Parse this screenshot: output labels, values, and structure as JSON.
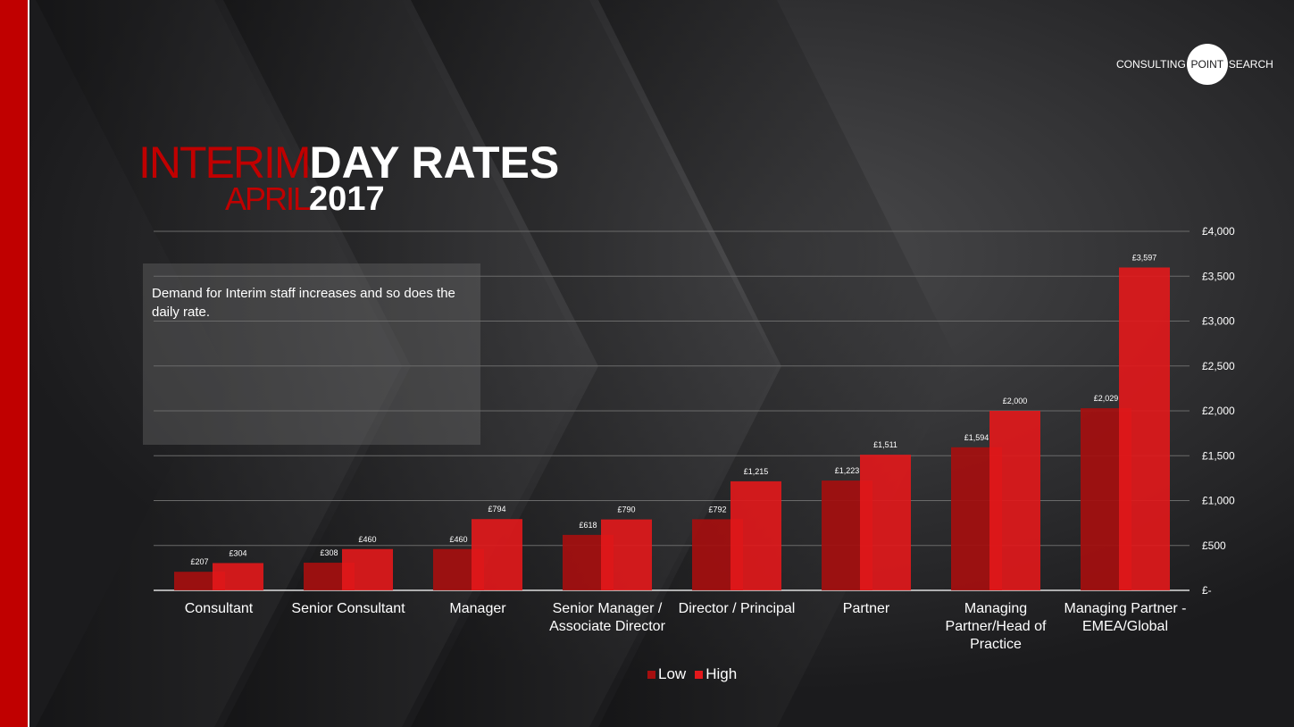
{
  "logo": {
    "left": "CONSULTING",
    "circle": "POINT",
    "right": "SEARCH"
  },
  "title": {
    "line1_red": "INTERIM",
    "line1_white": "DAY RATES",
    "line2_red": "APRIL",
    "line2_white": "2017"
  },
  "note": "Demand for Interim staff increases and so does the daily rate.",
  "colors": {
    "low": "#a50f0f",
    "high": "#e3181b",
    "accent": "#c00000",
    "background": "#1b1b1d"
  },
  "chart_data": {
    "type": "bar",
    "categories": [
      "Consultant",
      "Senior Consultant",
      "Manager",
      "Senior Manager / Associate Director",
      "Director / Principal",
      "Partner",
      "Managing Partner/Head of Practice",
      "Managing Partner - EMEA/Global"
    ],
    "category_lines": [
      [
        "Consultant"
      ],
      [
        "Senior Consultant"
      ],
      [
        "Manager"
      ],
      [
        "Senior Manager /",
        "Associate Director"
      ],
      [
        "Director / Principal"
      ],
      [
        "Partner"
      ],
      [
        "Managing",
        "Partner/Head of",
        "Practice"
      ],
      [
        "Managing Partner -",
        "EMEA/Global"
      ]
    ],
    "series": [
      {
        "name": "Low",
        "values": [
          207,
          308,
          460,
          618,
          792,
          1223,
          1594,
          2029
        ],
        "labels": [
          "£207",
          "£308",
          "£460",
          "£618",
          "£792",
          "£1,223",
          "£1,594",
          "£2,029"
        ]
      },
      {
        "name": "High",
        "values": [
          304,
          460,
          794,
          790,
          1215,
          1511,
          2000,
          3597
        ],
        "labels": [
          "£304",
          "£460",
          "£794",
          "£790",
          "£1,215",
          "£1,511",
          "£2,000",
          "£3,597"
        ]
      }
    ],
    "y_ticks": [
      0,
      500,
      1000,
      1500,
      2000,
      2500,
      3000,
      3500,
      4000
    ],
    "y_tick_labels": [
      "£-",
      "£500",
      "£1,000",
      "£1,500",
      "£2,000",
      "£2,500",
      "£3,000",
      "£3,500",
      "£4,000"
    ],
    "ylim": [
      0,
      4000
    ],
    "y_axis_side": "right",
    "grid": true,
    "legend_position": "bottom-center"
  }
}
